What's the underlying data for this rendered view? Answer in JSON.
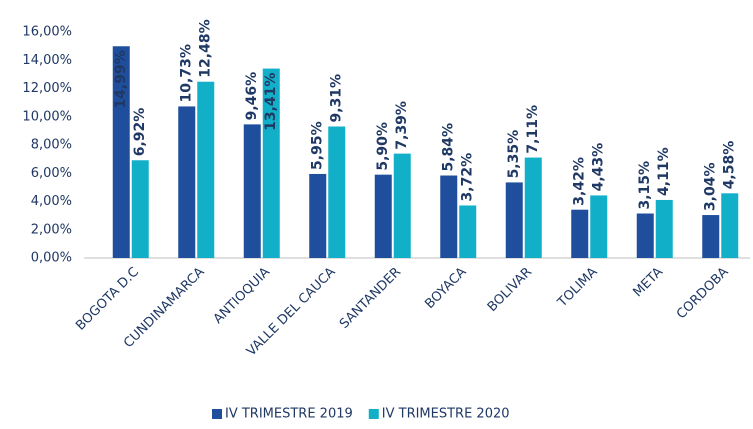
{
  "chart_data": {
    "type": "bar",
    "categories": [
      "BOGOTA D.C",
      "CUNDINAMARCA",
      "ANTIOQUIA",
      "VALLE DEL CAUCA",
      "SANTANDER",
      "BOYACA",
      "BOLIVAR",
      "TOLIMA",
      "META",
      "CORDOBA"
    ],
    "series": [
      {
        "name": "IV TRIMESTRE 2019",
        "color": "#1f4e9c",
        "values": [
          14.99,
          10.73,
          9.46,
          5.95,
          5.9,
          5.84,
          5.35,
          3.42,
          3.15,
          3.04
        ],
        "value_labels": [
          "14,99%",
          "10,73%",
          "9,46%",
          "5,95%",
          "5,90%",
          "5,84%",
          "5,35%",
          "3,42%",
          "3,15%",
          "3,04%"
        ]
      },
      {
        "name": "IV TRIMESTRE 2020",
        "color": "#12b0c8",
        "values": [
          6.92,
          12.48,
          13.41,
          9.31,
          7.39,
          3.72,
          7.11,
          4.43,
          4.11,
          4.58
        ],
        "value_labels": [
          "6,92%",
          "12,48%",
          "13,41%",
          "9,31%",
          "7,39%",
          "3,72%",
          "7,11%",
          "4,43%",
          "4,11%",
          "4,58%"
        ]
      }
    ],
    "ylim": [
      0,
      16
    ],
    "yticks": [
      {
        "value": 0,
        "label": "0,00%"
      },
      {
        "value": 2,
        "label": "2,00%"
      },
      {
        "value": 4,
        "label": "4,00%"
      },
      {
        "value": 6,
        "label": "6,00%"
      },
      {
        "value": 8,
        "label": "8,00%"
      },
      {
        "value": 10,
        "label": "10,00%"
      },
      {
        "value": 12,
        "label": "12,00%"
      },
      {
        "value": 14,
        "label": "14,00%"
      },
      {
        "value": 16,
        "label": "16,00%"
      }
    ],
    "grid": false,
    "legend": "bottom"
  }
}
